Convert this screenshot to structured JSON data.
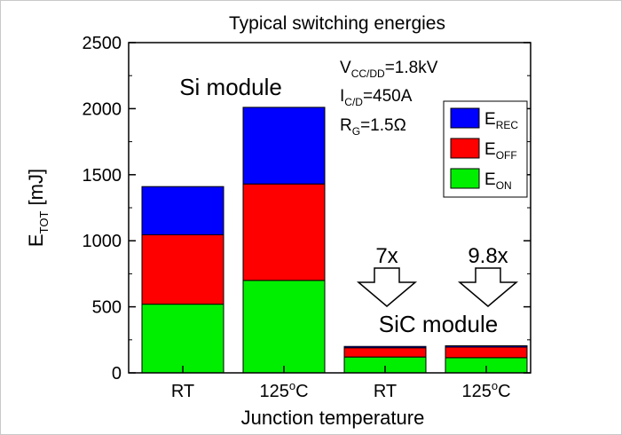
{
  "chart_data": {
    "type": "bar",
    "stacked": true,
    "title": "Typical switching energies",
    "xlabel": "Junction temperature",
    "ylabel": {
      "main": "E",
      "sub": "TOT",
      "unit": " [mJ]"
    },
    "ylim": [
      0,
      2500
    ],
    "yticks": [
      0,
      500,
      1000,
      1500,
      2000,
      2500
    ],
    "categories": [
      {
        "label": "RT",
        "sup": ""
      },
      {
        "label": "125",
        "sup": "o",
        "suffix": "C"
      },
      {
        "label": "RT",
        "sup": ""
      },
      {
        "label": "125",
        "sup": "o",
        "suffix": "C"
      }
    ],
    "series": [
      {
        "name": "E",
        "sub": "ON",
        "color": "#00ee00",
        "values": [
          520,
          700,
          120,
          115
        ]
      },
      {
        "name": "E",
        "sub": "OFF",
        "color": "#ff0000",
        "values": [
          525,
          730,
          70,
          80
        ]
      },
      {
        "name": "E",
        "sub": "REC",
        "color": "#0000ff",
        "values": [
          365,
          580,
          10,
          10
        ]
      }
    ],
    "legend_order": [
      2,
      1,
      0
    ],
    "legend_position": "top-right",
    "annotations": {
      "si_module": "Si module",
      "sic_module": "SiC module",
      "factor_rt": "7x",
      "factor_125": "9.8x",
      "conditions": [
        {
          "main": "V",
          "sub": "CC/DD",
          "rest": "=1.8kV"
        },
        {
          "main": "I",
          "sub": "C/D",
          "rest": "=450A"
        },
        {
          "main": "R",
          "sub": "G",
          "rest": "=1.5Ω"
        }
      ]
    }
  }
}
